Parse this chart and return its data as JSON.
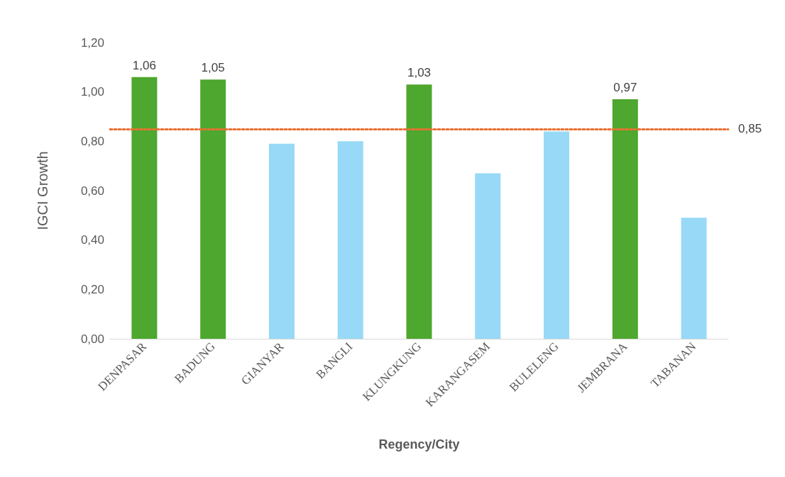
{
  "chart_data": {
    "type": "bar",
    "xlabel": "Regency/City",
    "ylabel": "IGCI Growth",
    "categories": [
      "DENPASAR",
      "BADUNG",
      "GIANYAR",
      "BANGLI",
      "KLUNGKUNG",
      "KARANGASEM",
      "BULELENG",
      "JEMBRANA",
      "TABANAN"
    ],
    "values": [
      1.06,
      1.05,
      0.79,
      0.8,
      1.03,
      0.67,
      0.84,
      0.97,
      0.49
    ],
    "colors": [
      "#4ea72e",
      "#4ea72e",
      "#97d9f7",
      "#97d9f7",
      "#4ea72e",
      "#97d9f7",
      "#97d9f7",
      "#4ea72e",
      "#97d9f7"
    ],
    "value_labels": [
      "1,06",
      "1,05",
      null,
      null,
      "1,03",
      null,
      null,
      "0,97",
      null
    ],
    "ylim": [
      0,
      1.2
    ],
    "yticks": [
      {
        "value": 0,
        "label": "0,00"
      },
      {
        "value": 0.2,
        "label": "0,20"
      },
      {
        "value": 0.4,
        "label": "0,40"
      },
      {
        "value": 0.6,
        "label": "0,60"
      },
      {
        "value": 0.8,
        "label": "0,80"
      },
      {
        "value": 1,
        "label": "1,00"
      },
      {
        "value": 1.2,
        "label": "1,20"
      }
    ],
    "ref_lines": [
      {
        "axis": "y",
        "value": 0.85,
        "label": "0,85",
        "color": "#e97132",
        "line_style": "dotted"
      }
    ],
    "grid": false
  }
}
